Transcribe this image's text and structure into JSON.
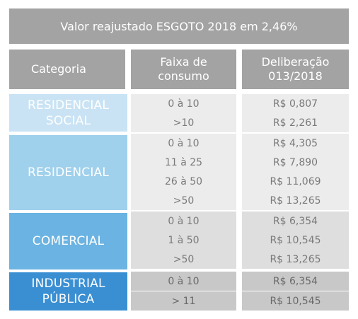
{
  "title": "Valor reajustado ESGOTO 2018 em 2,46%",
  "headers": {
    "categoria": "Categoria",
    "faixa_line1": "Faixa de",
    "faixa_line2": "consumo",
    "delib_line1": "Deliberação",
    "delib_line2": "013/2018"
  },
  "categories": [
    {
      "line1": "RESIDENCIAL",
      "line2": "SOCIAL",
      "color": "#c9e3f4"
    },
    {
      "line1": "RESIDENCIAL",
      "line2": "",
      "color": "#9fd0ec"
    },
    {
      "line1": "COMERCIAL",
      "line2": "",
      "color": "#6bb3e2"
    },
    {
      "line1": "INDUSTRIAL",
      "line2": "PÚBLICA",
      "color": "#3a8fd3"
    }
  ],
  "rows": [
    {
      "faixa": "0 à 10",
      "valor": "R$ 0,807"
    },
    {
      "faixa": ">10",
      "valor": "R$ 2,261"
    },
    {
      "faixa": "0 à 10",
      "valor": "R$ 4,305"
    },
    {
      "faixa": "11 à 25",
      "valor": "R$ 7,890"
    },
    {
      "faixa": "26 à 50",
      "valor": "R$ 11,069"
    },
    {
      "faixa": ">50",
      "valor": "R$ 13,265"
    },
    {
      "faixa": "0 à 10",
      "valor": "R$ 6,354"
    },
    {
      "faixa": "1 à 50",
      "valor": "R$ 10,545"
    },
    {
      "faixa": ">50",
      "valor": "R$ 13,265"
    },
    {
      "faixa": "0 à 10",
      "valor": "R$ 6,354"
    },
    {
      "faixa": "> 11",
      "valor": "R$  10,545"
    }
  ]
}
